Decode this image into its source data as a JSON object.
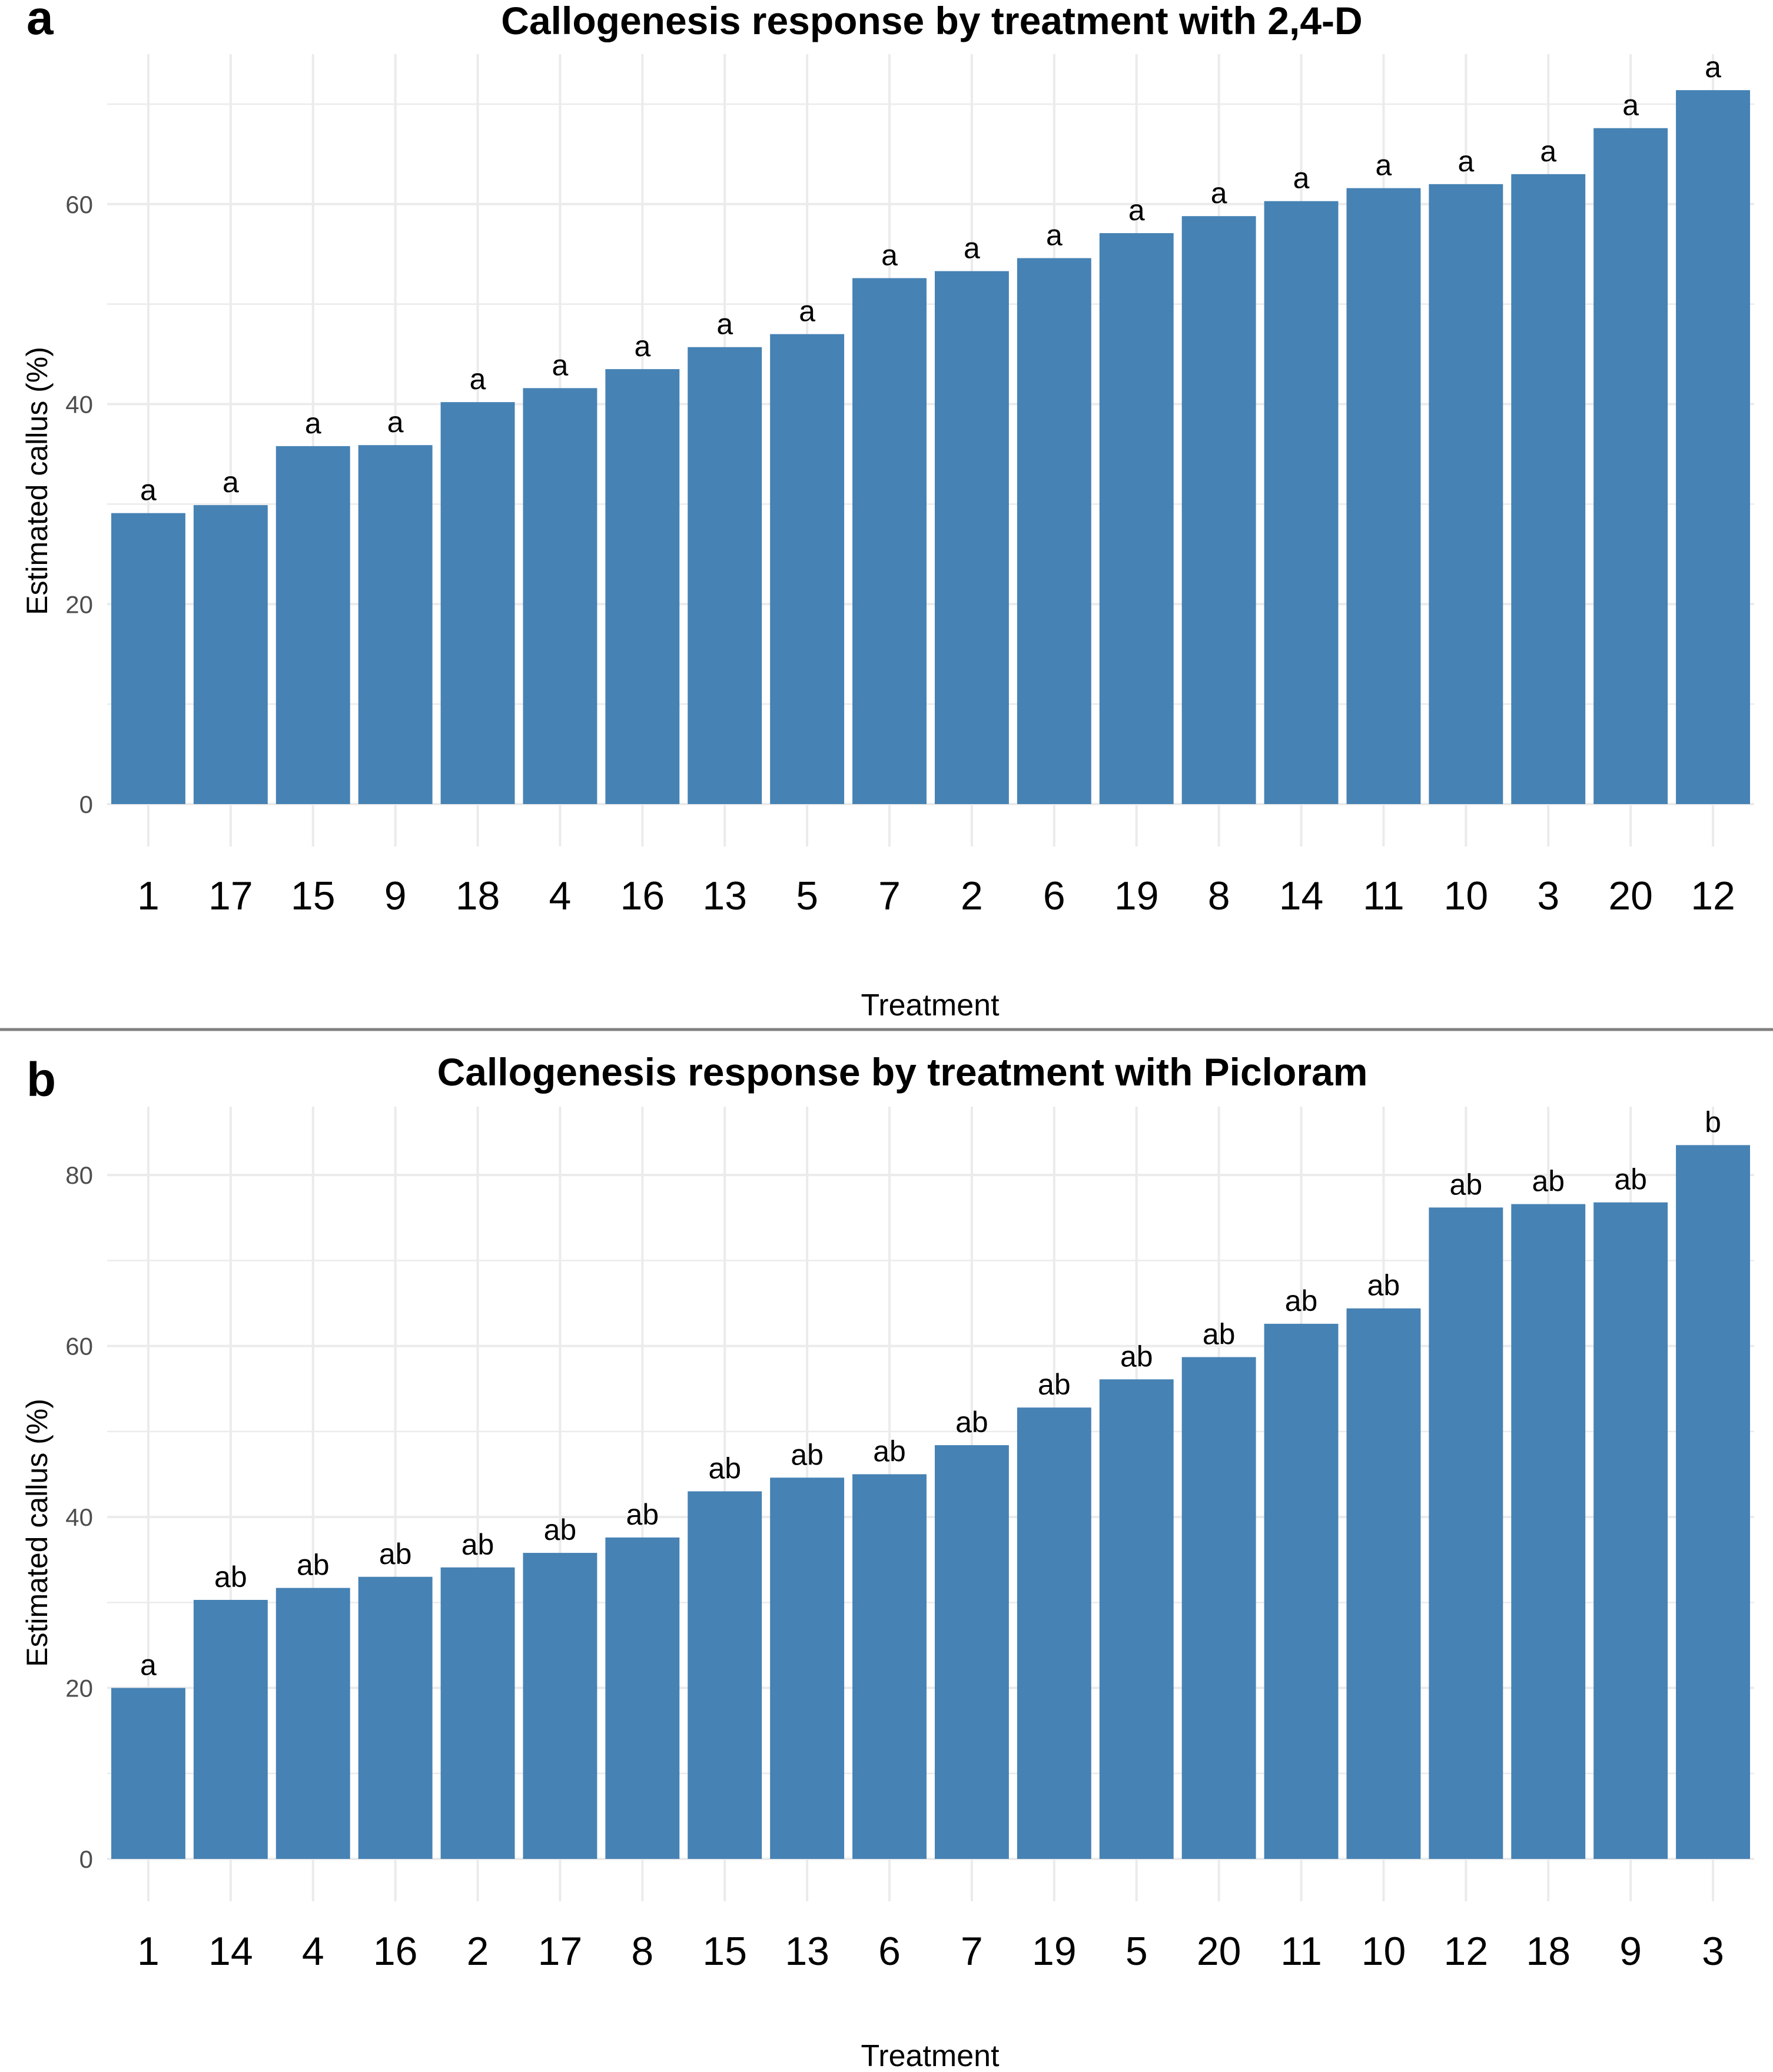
{
  "colors": {
    "bar": "#4682B4",
    "grid": "#EBEBEB",
    "divider": "#808080",
    "axis_text": "#4D4D4D",
    "text": "#000000"
  },
  "chart_data": [
    {
      "panel_label": "a",
      "type": "bar",
      "title": "Callogenesis response by treatment with 2,4-D",
      "xlabel": "Treatment",
      "ylabel": "Estimated callus (%)",
      "ylim": [
        0,
        75
      ],
      "yticks": [
        0,
        20,
        40,
        60
      ],
      "grid": true,
      "categories": [
        "1",
        "17",
        "15",
        "9",
        "18",
        "4",
        "16",
        "13",
        "5",
        "7",
        "2",
        "6",
        "19",
        "8",
        "14",
        "11",
        "10",
        "3",
        "20",
        "12"
      ],
      "values": [
        29.1,
        29.9,
        35.8,
        35.9,
        40.2,
        41.6,
        43.5,
        45.7,
        47.0,
        52.6,
        53.3,
        54.6,
        57.1,
        58.8,
        60.3,
        61.6,
        62.0,
        63.0,
        67.6,
        71.4
      ],
      "letters": [
        "a",
        "a",
        "a",
        "a",
        "a",
        "a",
        "a",
        "a",
        "a",
        "a",
        "a",
        "a",
        "a",
        "a",
        "a",
        "a",
        "a",
        "a",
        "a",
        "a"
      ]
    },
    {
      "panel_label": "b",
      "type": "bar",
      "title": "Callogenesis response by treatment with Picloram",
      "xlabel": "Treatment",
      "ylabel": "Estimated callus (%)",
      "ylim": [
        0,
        88
      ],
      "yticks": [
        0,
        20,
        40,
        60,
        80
      ],
      "grid": true,
      "categories": [
        "1",
        "14",
        "4",
        "16",
        "2",
        "17",
        "8",
        "15",
        "13",
        "6",
        "7",
        "19",
        "5",
        "20",
        "11",
        "10",
        "12",
        "18",
        "9",
        "3"
      ],
      "values": [
        20.0,
        30.3,
        31.7,
        33.0,
        34.1,
        35.8,
        37.6,
        43.0,
        44.6,
        45.0,
        48.4,
        52.8,
        56.1,
        58.7,
        62.6,
        64.4,
        76.2,
        76.6,
        76.8,
        83.5
      ],
      "letters": [
        "a",
        "ab",
        "ab",
        "ab",
        "ab",
        "ab",
        "ab",
        "ab",
        "ab",
        "ab",
        "ab",
        "ab",
        "ab",
        "ab",
        "ab",
        "ab",
        "ab",
        "ab",
        "ab",
        "b"
      ]
    }
  ]
}
